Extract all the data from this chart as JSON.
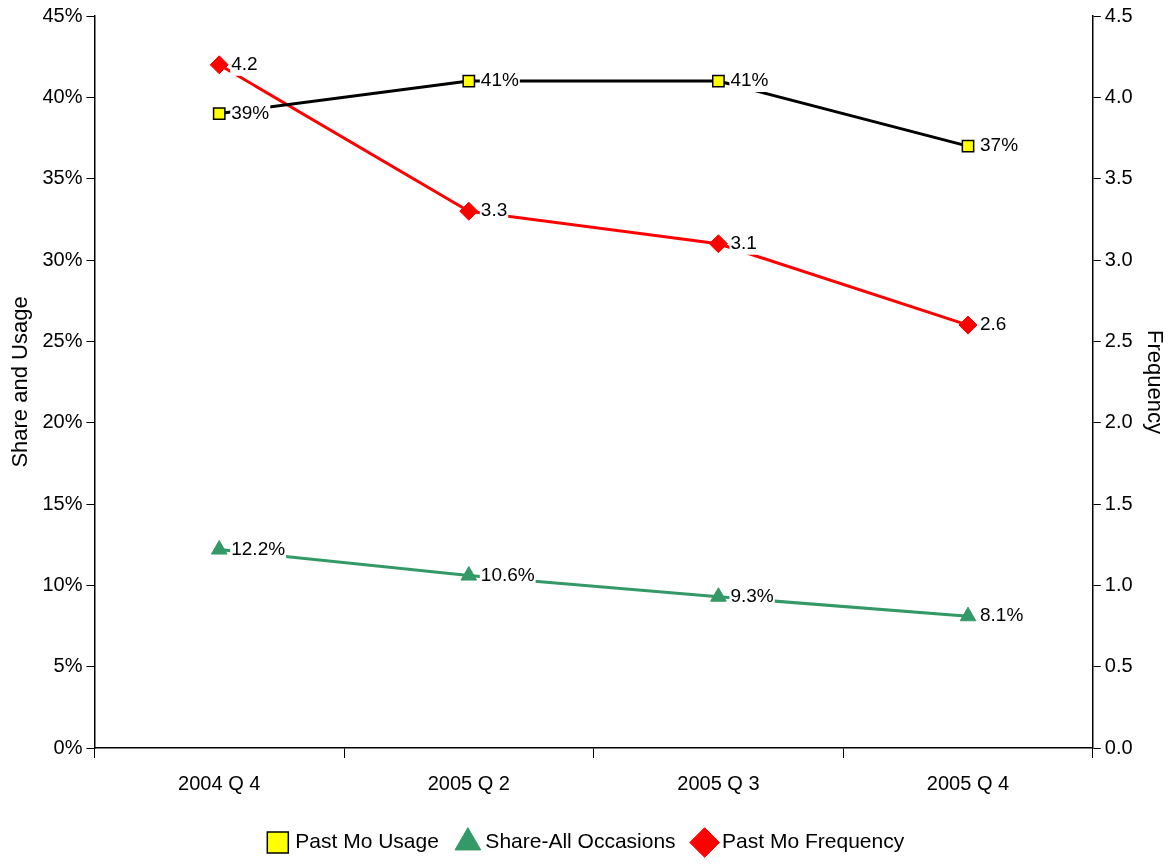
{
  "chart_data": {
    "type": "line",
    "categories": [
      "2004 Q 4",
      "2005 Q 2",
      "2005 Q 3",
      "2005 Q 4"
    ],
    "ylabel": "Share and Usage",
    "y2label": "Frequency",
    "ylim": [
      0,
      45
    ],
    "yticks": [
      {
        "value": 0,
        "label": "0%"
      },
      {
        "value": 5,
        "label": "5%"
      },
      {
        "value": 10,
        "label": "10%"
      },
      {
        "value": 15,
        "label": "15%"
      },
      {
        "value": 20,
        "label": "20%"
      },
      {
        "value": 25,
        "label": "25%"
      },
      {
        "value": 30,
        "label": "30%"
      },
      {
        "value": 35,
        "label": "35%"
      },
      {
        "value": 40,
        "label": "40%"
      },
      {
        "value": 45,
        "label": "45%"
      }
    ],
    "y2lim": [
      0,
      4.5
    ],
    "y2ticks": [
      {
        "value": 0,
        "label": "0.0"
      },
      {
        "value": 0.5,
        "label": "0.5"
      },
      {
        "value": 1,
        "label": "1.0"
      },
      {
        "value": 1.5,
        "label": "1.5"
      },
      {
        "value": 2,
        "label": "2.0"
      },
      {
        "value": 2.5,
        "label": "2.5"
      },
      {
        "value": 3,
        "label": "3.0"
      },
      {
        "value": 3.5,
        "label": "3.5"
      },
      {
        "value": 4,
        "label": "4.0"
      },
      {
        "value": 4.5,
        "label": "4.5"
      }
    ],
    "grid": false,
    "legend": "bottom",
    "line_style": "solid",
    "series": [
      {
        "name": "Past Mo Usage",
        "color": "#000000",
        "marker": "square",
        "values": [
          39,
          41,
          41,
          37
        ],
        "value_labels": [
          "39%",
          "41%",
          "41%",
          "37%"
        ]
      },
      {
        "name": "Share-All Occasions",
        "color": "#339966",
        "marker": "triangle",
        "values": [
          12.2,
          10.6,
          9.3,
          8.1
        ],
        "value_labels": [
          "12.2%",
          "10.6%",
          "9.3%",
          "8.1%"
        ]
      },
      {
        "name": "Past Mo Frequency",
        "color": "#ff0000",
        "marker": "diamond",
        "axis": "y2",
        "values": [
          4.2,
          3.3,
          3.1,
          2.6
        ],
        "value_labels": [
          "4.2",
          "3.3",
          "3.1",
          "2.6"
        ]
      }
    ]
  }
}
